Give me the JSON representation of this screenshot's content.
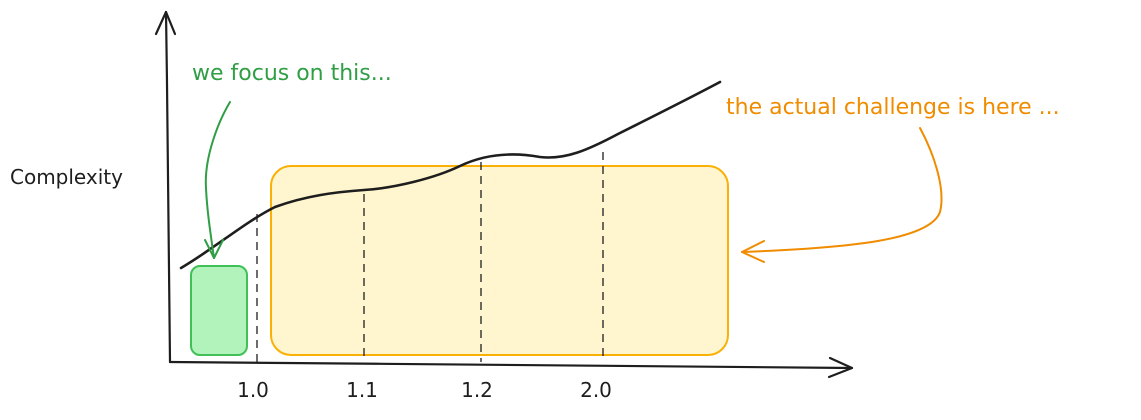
{
  "diagram": {
    "ylabel": "Complexity",
    "versions": [
      "1.0",
      "1.1",
      "1.2",
      "2.0"
    ],
    "annotation_current": "we focus on this...",
    "annotation_challenge": "the actual challenge is here ...",
    "colors": {
      "stroke": "#1e1e1e",
      "green_fill": "#b2f2bb",
      "green_stroke": "#40c057",
      "green_text": "#2f9e44",
      "yellow_fill": "#fff3bf",
      "yellow_stroke": "#fab005",
      "orange": "#f08c00"
    }
  }
}
